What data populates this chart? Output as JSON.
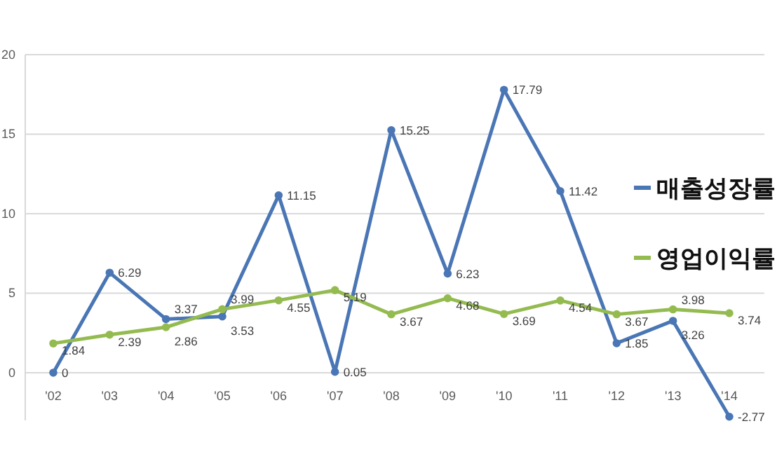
{
  "chart_data": {
    "type": "line",
    "categories": [
      "'02",
      "'03",
      "'04",
      "'05",
      "'06",
      "'07",
      "'08",
      "'09",
      "'10",
      "'11",
      "'12",
      "'13",
      "'14"
    ],
    "series": [
      {
        "name": "매출성장률",
        "color": "#4a76b5",
        "values": [
          0,
          6.29,
          3.37,
          3.53,
          11.15,
          0.05,
          15.25,
          6.23,
          17.79,
          11.42,
          1.85,
          3.26,
          -2.77
        ]
      },
      {
        "name": "영업이익률",
        "color": "#94bb4f",
        "values": [
          1.84,
          2.39,
          2.86,
          3.99,
          4.55,
          5.19,
          3.67,
          4.68,
          3.69,
          4.54,
          3.67,
          3.98,
          3.74
        ]
      }
    ],
    "ylim": [
      -3,
      20
    ],
    "yticks": [
      0,
      5,
      10,
      15,
      20
    ],
    "grid": "y",
    "legend": "right",
    "data_labels": true,
    "marker": "circle",
    "line_style": "solid"
  }
}
